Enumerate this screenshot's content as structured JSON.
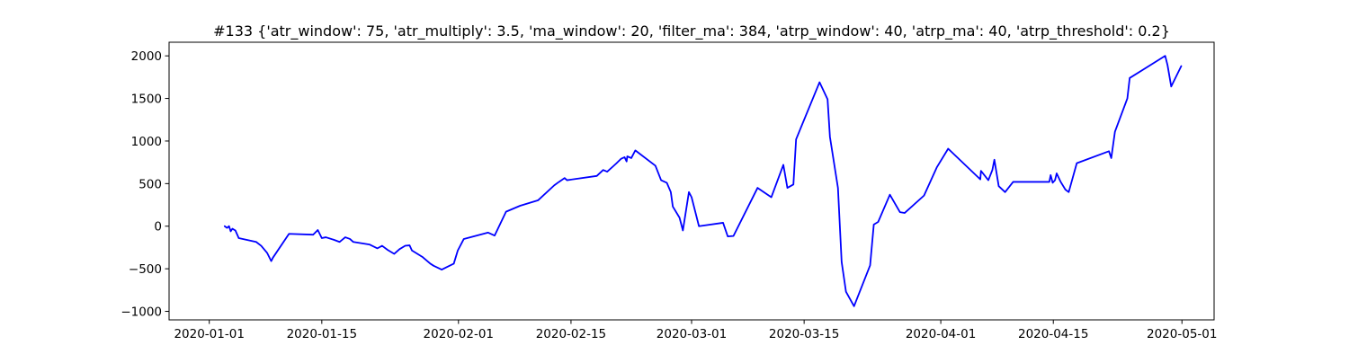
{
  "chart_data": {
    "type": "line",
    "title": "#133 {'atr_window': 75, 'atr_multiply': 3.5, 'ma_window': 20, 'filter_ma': 384, 'atrp_window': 40, 'atrp_ma': 40, 'atrp_threshold': 0.2}",
    "xlabel": "",
    "ylabel": "",
    "grid": false,
    "legend": "none",
    "xlim": [
      "2019-12-27",
      "2020-05-05"
    ],
    "ylim": [
      -1100,
      2160
    ],
    "x_ticks": [
      "2020-01-01",
      "2020-01-15",
      "2020-02-01",
      "2020-02-15",
      "2020-03-01",
      "2020-03-15",
      "2020-04-01",
      "2020-04-15",
      "2020-05-01"
    ],
    "y_ticks": [
      -1000,
      -500,
      0,
      500,
      1000,
      1500,
      2000
    ],
    "series": [
      {
        "color": "#0000ff",
        "points": [
          [
            "2020-01-02T22:00",
            0
          ],
          [
            "2020-01-03T05:00",
            -20
          ],
          [
            "2020-01-03T11:00",
            0
          ],
          [
            "2020-01-03T16:00",
            -60
          ],
          [
            "2020-01-03T21:00",
            -30
          ],
          [
            "2020-01-04T06:00",
            -50
          ],
          [
            "2020-01-04T16:00",
            -140
          ],
          [
            "2020-01-06T20:00",
            -185
          ],
          [
            "2020-01-07T11:00",
            -230
          ],
          [
            "2020-01-08T05:00",
            -315
          ],
          [
            "2020-01-08T17:00",
            -410
          ],
          [
            "2020-01-08T22:00",
            -370
          ],
          [
            "2020-01-10T22:00",
            -90
          ],
          [
            "2020-01-13T22:00",
            -100
          ],
          [
            "2020-01-14T12:00",
            -45
          ],
          [
            "2020-01-15T00:00",
            -140
          ],
          [
            "2020-01-15T12:00",
            -130
          ],
          [
            "2020-01-16T12:00",
            -160
          ],
          [
            "2020-01-17T05:00",
            -185
          ],
          [
            "2020-01-17T22:00",
            -130
          ],
          [
            "2020-01-18T12:00",
            -150
          ],
          [
            "2020-01-18T22:00",
            -185
          ],
          [
            "2020-01-20T22:00",
            -215
          ],
          [
            "2020-01-21T22:00",
            -260
          ],
          [
            "2020-01-22T12:00",
            -230
          ],
          [
            "2020-01-23T05:00",
            -280
          ],
          [
            "2020-01-24T00:00",
            -325
          ],
          [
            "2020-01-24T16:00",
            -270
          ],
          [
            "2020-01-25T09:00",
            -230
          ],
          [
            "2020-01-25T22:00",
            -225
          ],
          [
            "2020-01-26T05:00",
            -285
          ],
          [
            "2020-01-27T12:00",
            -360
          ],
          [
            "2020-01-28T12:00",
            -440
          ],
          [
            "2020-01-28T22:00",
            -465
          ],
          [
            "2020-01-29T22:00",
            -510
          ],
          [
            "2020-01-31T10:00",
            -440
          ],
          [
            "2020-01-31T22:00",
            -285
          ],
          [
            "2020-02-01T16:00",
            -150
          ],
          [
            "2020-02-04T16:00",
            -75
          ],
          [
            "2020-02-05T12:00",
            -110
          ],
          [
            "2020-02-06T22:00",
            170
          ],
          [
            "2020-02-08T16:00",
            240
          ],
          [
            "2020-02-10T22:00",
            305
          ],
          [
            "2020-02-12T22:00",
            480
          ],
          [
            "2020-02-13T12:00",
            520
          ],
          [
            "2020-02-14T05:00",
            565
          ],
          [
            "2020-02-14T12:00",
            540
          ],
          [
            "2020-02-18T05:00",
            590
          ],
          [
            "2020-02-19T00:00",
            660
          ],
          [
            "2020-02-19T12:00",
            640
          ],
          [
            "2020-02-20T05:00",
            700
          ],
          [
            "2020-02-20T16:00",
            740
          ],
          [
            "2020-02-21T05:00",
            790
          ],
          [
            "2020-02-21T16:00",
            810
          ],
          [
            "2020-02-21T22:00",
            760
          ],
          [
            "2020-02-22T00:00",
            820
          ],
          [
            "2020-02-22T12:00",
            800
          ],
          [
            "2020-02-23T00:00",
            890
          ],
          [
            "2020-02-25T12:00",
            710
          ],
          [
            "2020-02-26T05:00",
            540
          ],
          [
            "2020-02-26T22:00",
            510
          ],
          [
            "2020-02-27T10:00",
            400
          ],
          [
            "2020-02-27T16:00",
            230
          ],
          [
            "2020-02-28T12:00",
            100
          ],
          [
            "2020-02-28T22:00",
            -50
          ],
          [
            "2020-02-29T16:00",
            400
          ],
          [
            "2020-03-01T00:00",
            340
          ],
          [
            "2020-03-01T22:00",
            0
          ],
          [
            "2020-03-04T22:00",
            40
          ],
          [
            "2020-03-05T12:00",
            -120
          ],
          [
            "2020-03-06T05:00",
            -115
          ],
          [
            "2020-03-09T05:00",
            450
          ],
          [
            "2020-03-10T22:00",
            340
          ],
          [
            "2020-03-12T10:00",
            720
          ],
          [
            "2020-03-12T22:00",
            450
          ],
          [
            "2020-03-13T16:00",
            490
          ],
          [
            "2020-03-14T00:00",
            1020
          ],
          [
            "2020-03-16T22:00",
            1690
          ],
          [
            "2020-03-17T22:00",
            1490
          ],
          [
            "2020-03-18T05:00",
            1050
          ],
          [
            "2020-03-19T05:00",
            450
          ],
          [
            "2020-03-19T16:00",
            -420
          ],
          [
            "2020-03-20T05:00",
            -770
          ],
          [
            "2020-03-21T05:00",
            -940
          ],
          [
            "2020-03-23T05:00",
            -460
          ],
          [
            "2020-03-23T16:00",
            20
          ],
          [
            "2020-03-24T05:00",
            50
          ],
          [
            "2020-03-25T16:00",
            370
          ],
          [
            "2020-03-26T22:00",
            165
          ],
          [
            "2020-03-27T12:00",
            155
          ],
          [
            "2020-03-29T22:00",
            360
          ],
          [
            "2020-03-31T12:00",
            690
          ],
          [
            "2020-04-01T22:00",
            910
          ],
          [
            "2020-04-05T22:00",
            550
          ],
          [
            "2020-04-06T00:00",
            650
          ],
          [
            "2020-04-06T22:00",
            540
          ],
          [
            "2020-04-07T10:00",
            660
          ],
          [
            "2020-04-07T16:00",
            780
          ],
          [
            "2020-04-08T05:00",
            470
          ],
          [
            "2020-04-09T00:00",
            400
          ],
          [
            "2020-04-10T00:00",
            520
          ],
          [
            "2020-04-14T12:00",
            520
          ],
          [
            "2020-04-14T16:00",
            600
          ],
          [
            "2020-04-14T22:00",
            510
          ],
          [
            "2020-04-15T05:00",
            540
          ],
          [
            "2020-04-15T10:00",
            620
          ],
          [
            "2020-04-15T22:00",
            520
          ],
          [
            "2020-04-16T12:00",
            430
          ],
          [
            "2020-04-16T22:00",
            400
          ],
          [
            "2020-04-17T22:00",
            740
          ],
          [
            "2020-04-21T22:00",
            880
          ],
          [
            "2020-04-22T05:00",
            800
          ],
          [
            "2020-04-22T16:00",
            1110
          ],
          [
            "2020-04-24T05:00",
            1500
          ],
          [
            "2020-04-24T12:00",
            1740
          ],
          [
            "2020-04-28T22:00",
            2000
          ],
          [
            "2020-04-29T05:00",
            1890
          ],
          [
            "2020-04-29T16:00",
            1640
          ],
          [
            "2020-04-30T22:00",
            1880
          ]
        ]
      }
    ]
  }
}
